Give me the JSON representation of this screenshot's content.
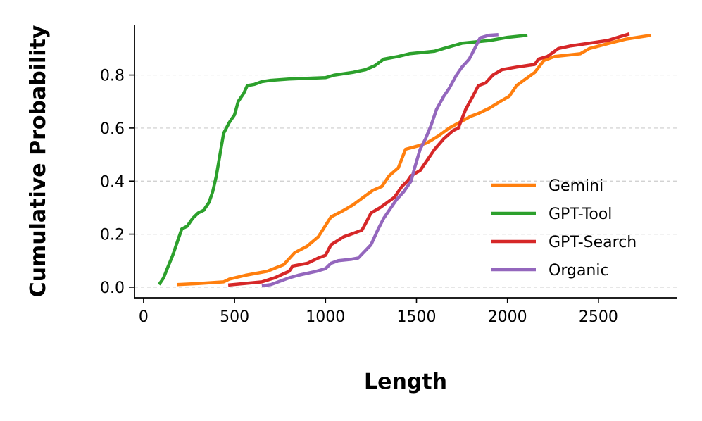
{
  "chart_data": {
    "type": "line",
    "xlabel": "Length",
    "ylabel": "Cumulative Probability",
    "xlim": [
      -50,
      2930
    ],
    "ylim": [
      -0.04,
      0.99
    ],
    "xticks": [
      0,
      500,
      1000,
      1500,
      2000,
      2500
    ],
    "yticks": [
      0.0,
      0.2,
      0.4,
      0.6,
      0.8
    ],
    "ytick_labels": [
      "0.0",
      "0.2",
      "0.4",
      "0.6",
      "0.8"
    ],
    "grid": "y-dashed",
    "legend_position": "right",
    "series": [
      {
        "name": "Gemini",
        "color": "#ff7f0e",
        "points": [
          [
            185,
            0.01
          ],
          [
            300,
            0.014
          ],
          [
            440,
            0.02
          ],
          [
            470,
            0.03
          ],
          [
            560,
            0.045
          ],
          [
            680,
            0.06
          ],
          [
            770,
            0.085
          ],
          [
            830,
            0.13
          ],
          [
            900,
            0.155
          ],
          [
            960,
            0.19
          ],
          [
            1030,
            0.265
          ],
          [
            1100,
            0.29
          ],
          [
            1150,
            0.31
          ],
          [
            1200,
            0.335
          ],
          [
            1260,
            0.365
          ],
          [
            1310,
            0.38
          ],
          [
            1350,
            0.42
          ],
          [
            1400,
            0.45
          ],
          [
            1440,
            0.52
          ],
          [
            1520,
            0.535
          ],
          [
            1560,
            0.545
          ],
          [
            1620,
            0.57
          ],
          [
            1680,
            0.6
          ],
          [
            1760,
            0.63
          ],
          [
            1800,
            0.645
          ],
          [
            1840,
            0.655
          ],
          [
            1900,
            0.675
          ],
          [
            1960,
            0.7
          ],
          [
            2010,
            0.72
          ],
          [
            2050,
            0.76
          ],
          [
            2110,
            0.79
          ],
          [
            2150,
            0.81
          ],
          [
            2200,
            0.855
          ],
          [
            2260,
            0.87
          ],
          [
            2400,
            0.88
          ],
          [
            2450,
            0.9
          ],
          [
            2560,
            0.92
          ],
          [
            2650,
            0.935
          ],
          [
            2790,
            0.95
          ]
        ]
      },
      {
        "name": "GPT-Tool",
        "color": "#2ca02c",
        "points": [
          [
            85,
            0.01
          ],
          [
            110,
            0.035
          ],
          [
            130,
            0.07
          ],
          [
            160,
            0.12
          ],
          [
            190,
            0.18
          ],
          [
            210,
            0.22
          ],
          [
            240,
            0.23
          ],
          [
            270,
            0.26
          ],
          [
            300,
            0.28
          ],
          [
            330,
            0.29
          ],
          [
            360,
            0.32
          ],
          [
            380,
            0.36
          ],
          [
            400,
            0.42
          ],
          [
            420,
            0.5
          ],
          [
            440,
            0.58
          ],
          [
            470,
            0.62
          ],
          [
            500,
            0.65
          ],
          [
            520,
            0.7
          ],
          [
            550,
            0.73
          ],
          [
            570,
            0.76
          ],
          [
            610,
            0.765
          ],
          [
            650,
            0.775
          ],
          [
            700,
            0.78
          ],
          [
            800,
            0.785
          ],
          [
            1000,
            0.79
          ],
          [
            1050,
            0.8
          ],
          [
            1150,
            0.81
          ],
          [
            1220,
            0.82
          ],
          [
            1270,
            0.835
          ],
          [
            1320,
            0.86
          ],
          [
            1400,
            0.87
          ],
          [
            1460,
            0.88
          ],
          [
            1600,
            0.89
          ],
          [
            1700,
            0.91
          ],
          [
            1750,
            0.92
          ],
          [
            1900,
            0.93
          ],
          [
            2000,
            0.942
          ],
          [
            2110,
            0.95
          ]
        ]
      },
      {
        "name": "GPT-Search",
        "color": "#d62728",
        "points": [
          [
            465,
            0.008
          ],
          [
            650,
            0.02
          ],
          [
            720,
            0.035
          ],
          [
            800,
            0.06
          ],
          [
            820,
            0.08
          ],
          [
            900,
            0.09
          ],
          [
            960,
            0.11
          ],
          [
            1000,
            0.12
          ],
          [
            1030,
            0.16
          ],
          [
            1100,
            0.19
          ],
          [
            1140,
            0.2
          ],
          [
            1200,
            0.215
          ],
          [
            1220,
            0.24
          ],
          [
            1250,
            0.28
          ],
          [
            1300,
            0.3
          ],
          [
            1340,
            0.32
          ],
          [
            1380,
            0.34
          ],
          [
            1420,
            0.38
          ],
          [
            1450,
            0.4
          ],
          [
            1470,
            0.42
          ],
          [
            1520,
            0.44
          ],
          [
            1560,
            0.48
          ],
          [
            1600,
            0.52
          ],
          [
            1650,
            0.56
          ],
          [
            1700,
            0.59
          ],
          [
            1730,
            0.6
          ],
          [
            1770,
            0.67
          ],
          [
            1810,
            0.72
          ],
          [
            1840,
            0.76
          ],
          [
            1880,
            0.77
          ],
          [
            1920,
            0.8
          ],
          [
            1970,
            0.82
          ],
          [
            2050,
            0.83
          ],
          [
            2150,
            0.84
          ],
          [
            2170,
            0.86
          ],
          [
            2220,
            0.87
          ],
          [
            2280,
            0.9
          ],
          [
            2350,
            0.91
          ],
          [
            2450,
            0.92
          ],
          [
            2550,
            0.93
          ],
          [
            2620,
            0.945
          ],
          [
            2670,
            0.955
          ]
        ]
      },
      {
        "name": "Organic",
        "color": "#9467bd",
        "points": [
          [
            650,
            0.005
          ],
          [
            700,
            0.01
          ],
          [
            760,
            0.025
          ],
          [
            800,
            0.035
          ],
          [
            850,
            0.045
          ],
          [
            950,
            0.06
          ],
          [
            1000,
            0.07
          ],
          [
            1030,
            0.09
          ],
          [
            1070,
            0.1
          ],
          [
            1140,
            0.105
          ],
          [
            1180,
            0.11
          ],
          [
            1250,
            0.16
          ],
          [
            1290,
            0.22
          ],
          [
            1320,
            0.26
          ],
          [
            1360,
            0.3
          ],
          [
            1390,
            0.33
          ],
          [
            1430,
            0.36
          ],
          [
            1470,
            0.4
          ],
          [
            1490,
            0.45
          ],
          [
            1520,
            0.52
          ],
          [
            1550,
            0.56
          ],
          [
            1580,
            0.61
          ],
          [
            1610,
            0.67
          ],
          [
            1650,
            0.72
          ],
          [
            1680,
            0.75
          ],
          [
            1720,
            0.8
          ],
          [
            1750,
            0.83
          ],
          [
            1790,
            0.86
          ],
          [
            1820,
            0.9
          ],
          [
            1850,
            0.94
          ],
          [
            1900,
            0.95
          ],
          [
            1950,
            0.952
          ]
        ]
      }
    ]
  }
}
